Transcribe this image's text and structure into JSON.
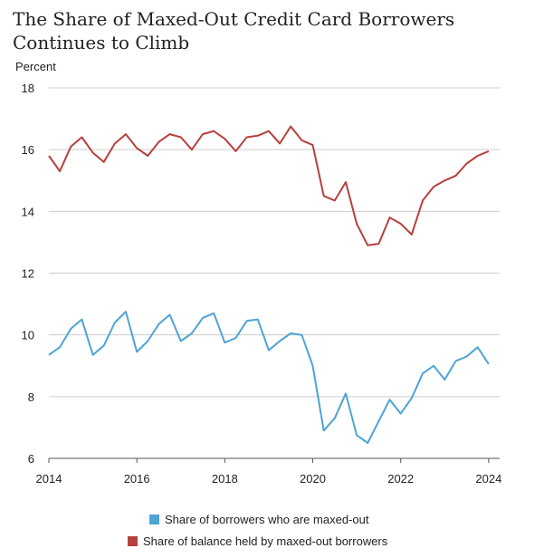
{
  "chart_data": {
    "type": "line",
    "title": "The Share of Maxed-Out Credit Card Borrowers Continues to Climb",
    "ylabel": "Percent",
    "xlabel": "",
    "ylim": [
      6,
      18
    ],
    "yticks": [
      6,
      8,
      10,
      12,
      14,
      16,
      18
    ],
    "xlim": [
      2014,
      2024.25
    ],
    "xticks": [
      2014,
      2016,
      2018,
      2020,
      2022,
      2024
    ],
    "grid": true,
    "legend_position": "bottom",
    "series": [
      {
        "name": "Share of borrowers who are maxed-out",
        "color": "#4fa3d5",
        "x": [
          2014.0,
          2014.25,
          2014.5,
          2014.75,
          2015.0,
          2015.25,
          2015.5,
          2015.75,
          2016.0,
          2016.25,
          2016.5,
          2016.75,
          2017.0,
          2017.25,
          2017.5,
          2017.75,
          2018.0,
          2018.25,
          2018.5,
          2018.75,
          2019.0,
          2019.25,
          2019.5,
          2019.75,
          2020.0,
          2020.25,
          2020.5,
          2020.75,
          2021.0,
          2021.25,
          2021.5,
          2021.75,
          2022.0,
          2022.25,
          2022.5,
          2022.75,
          2023.0,
          2023.25,
          2023.5,
          2023.75,
          2024.0,
          2024.25
        ],
        "values": [
          9.35,
          9.6,
          10.2,
          10.5,
          9.35,
          9.65,
          10.4,
          10.75,
          9.45,
          9.8,
          10.35,
          10.65,
          9.8,
          10.05,
          10.55,
          10.7,
          9.75,
          9.9,
          10.45,
          10.5,
          9.5,
          9.8,
          10.05,
          10.0,
          9.0,
          6.9,
          7.3,
          8.1,
          6.75,
          6.5,
          7.2,
          7.9,
          7.45,
          7.95,
          8.75,
          9.0,
          8.55,
          9.15,
          9.3,
          9.6,
          9.05,
          null
        ]
      },
      {
        "name": "Share of balance held by maxed-out borrowers",
        "color": "#b5413c",
        "x": [
          2014.0,
          2014.25,
          2014.5,
          2014.75,
          2015.0,
          2015.25,
          2015.5,
          2015.75,
          2016.0,
          2016.25,
          2016.5,
          2016.75,
          2017.0,
          2017.25,
          2017.5,
          2017.75,
          2018.0,
          2018.25,
          2018.5,
          2018.75,
          2019.0,
          2019.25,
          2019.5,
          2019.75,
          2020.0,
          2020.25,
          2020.5,
          2020.75,
          2021.0,
          2021.25,
          2021.5,
          2021.75,
          2022.0,
          2022.25,
          2022.5,
          2022.75,
          2023.0,
          2023.25,
          2023.5,
          2023.75,
          2024.0,
          2024.25
        ],
        "values": [
          15.8,
          15.3,
          16.1,
          16.4,
          15.9,
          15.6,
          16.2,
          16.5,
          16.05,
          15.8,
          16.25,
          16.5,
          16.4,
          16.0,
          16.5,
          16.6,
          16.35,
          15.95,
          16.4,
          16.45,
          16.6,
          16.2,
          16.75,
          16.3,
          16.15,
          14.5,
          14.35,
          14.95,
          13.6,
          12.9,
          12.95,
          13.8,
          13.6,
          13.25,
          14.35,
          14.8,
          15.0,
          15.15,
          15.55,
          15.8,
          15.95,
          null
        ]
      }
    ]
  }
}
